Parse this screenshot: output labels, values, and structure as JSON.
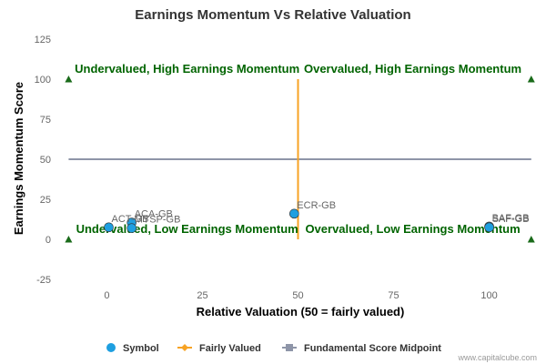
{
  "chart_data": {
    "type": "scatter",
    "title": "Earnings Momentum Vs Relative Valuation",
    "xlabel": "Relative Valuation (50 = fairly valued)",
    "ylabel": "Earnings Momentum Score",
    "xlim": [
      -12,
      112
    ],
    "ylim": [
      -25,
      125
    ],
    "xticks": [
      0,
      25,
      50,
      75,
      100
    ],
    "yticks": [
      -25,
      0,
      25,
      50,
      75,
      100,
      125
    ],
    "grid": false,
    "legend_position": "bottom",
    "colors": {
      "symbol": "#1e9fe0",
      "fairly_valued": "#f7a324",
      "midpoint": "#8e95a8",
      "quadrant_text": "#006400",
      "marker": "#1a6b1a"
    },
    "points": [
      {
        "label": "ACA-GB",
        "x": 6.5,
        "y": 10.5
      },
      {
        "label": "ACT-GB",
        "x": 0.5,
        "y": 7.5
      },
      {
        "label": "MYSP-GB",
        "x": 6.5,
        "y": 7
      },
      {
        "label": "ECR-GB",
        "x": 49,
        "y": 16
      },
      {
        "label": "BAF-GB",
        "x": 100,
        "y": 8
      },
      {
        "label": "SAF-GB",
        "x": 100,
        "y": 7.5
      }
    ],
    "fairly_valued_line": {
      "x": 50,
      "y_range": [
        0,
        100
      ]
    },
    "midpoint_line": {
      "y": 50,
      "x_range": [
        -10,
        111
      ]
    },
    "corner_markers": [
      {
        "x": -10,
        "y": 100
      },
      {
        "x": 111,
        "y": 100
      },
      {
        "x": -10,
        "y": 0
      },
      {
        "x": 111,
        "y": 0
      }
    ],
    "quadrant_labels": [
      {
        "text": "Undervalued, High Earnings Momentum",
        "x": 21,
        "y": 104,
        "anchor": "middle"
      },
      {
        "text": "Overvalued, High Earnings Momentum",
        "x": 80,
        "y": 104,
        "anchor": "middle"
      },
      {
        "text": "Undervalued, Low Earnings Momentum",
        "x": 21,
        "y": 4,
        "anchor": "middle"
      },
      {
        "text": "Overvalued, Low Earnings Momentum",
        "x": 80,
        "y": 4,
        "anchor": "middle"
      }
    ],
    "legend": [
      {
        "label": "Symbol",
        "kind": "circle",
        "color": "#1e9fe0"
      },
      {
        "label": "Fairly Valued",
        "kind": "diamond",
        "color": "#f7a324"
      },
      {
        "label": "Fundamental Score Midpoint",
        "kind": "square",
        "color": "#8e95a8"
      }
    ]
  },
  "credit": "www.capitalcube.com"
}
